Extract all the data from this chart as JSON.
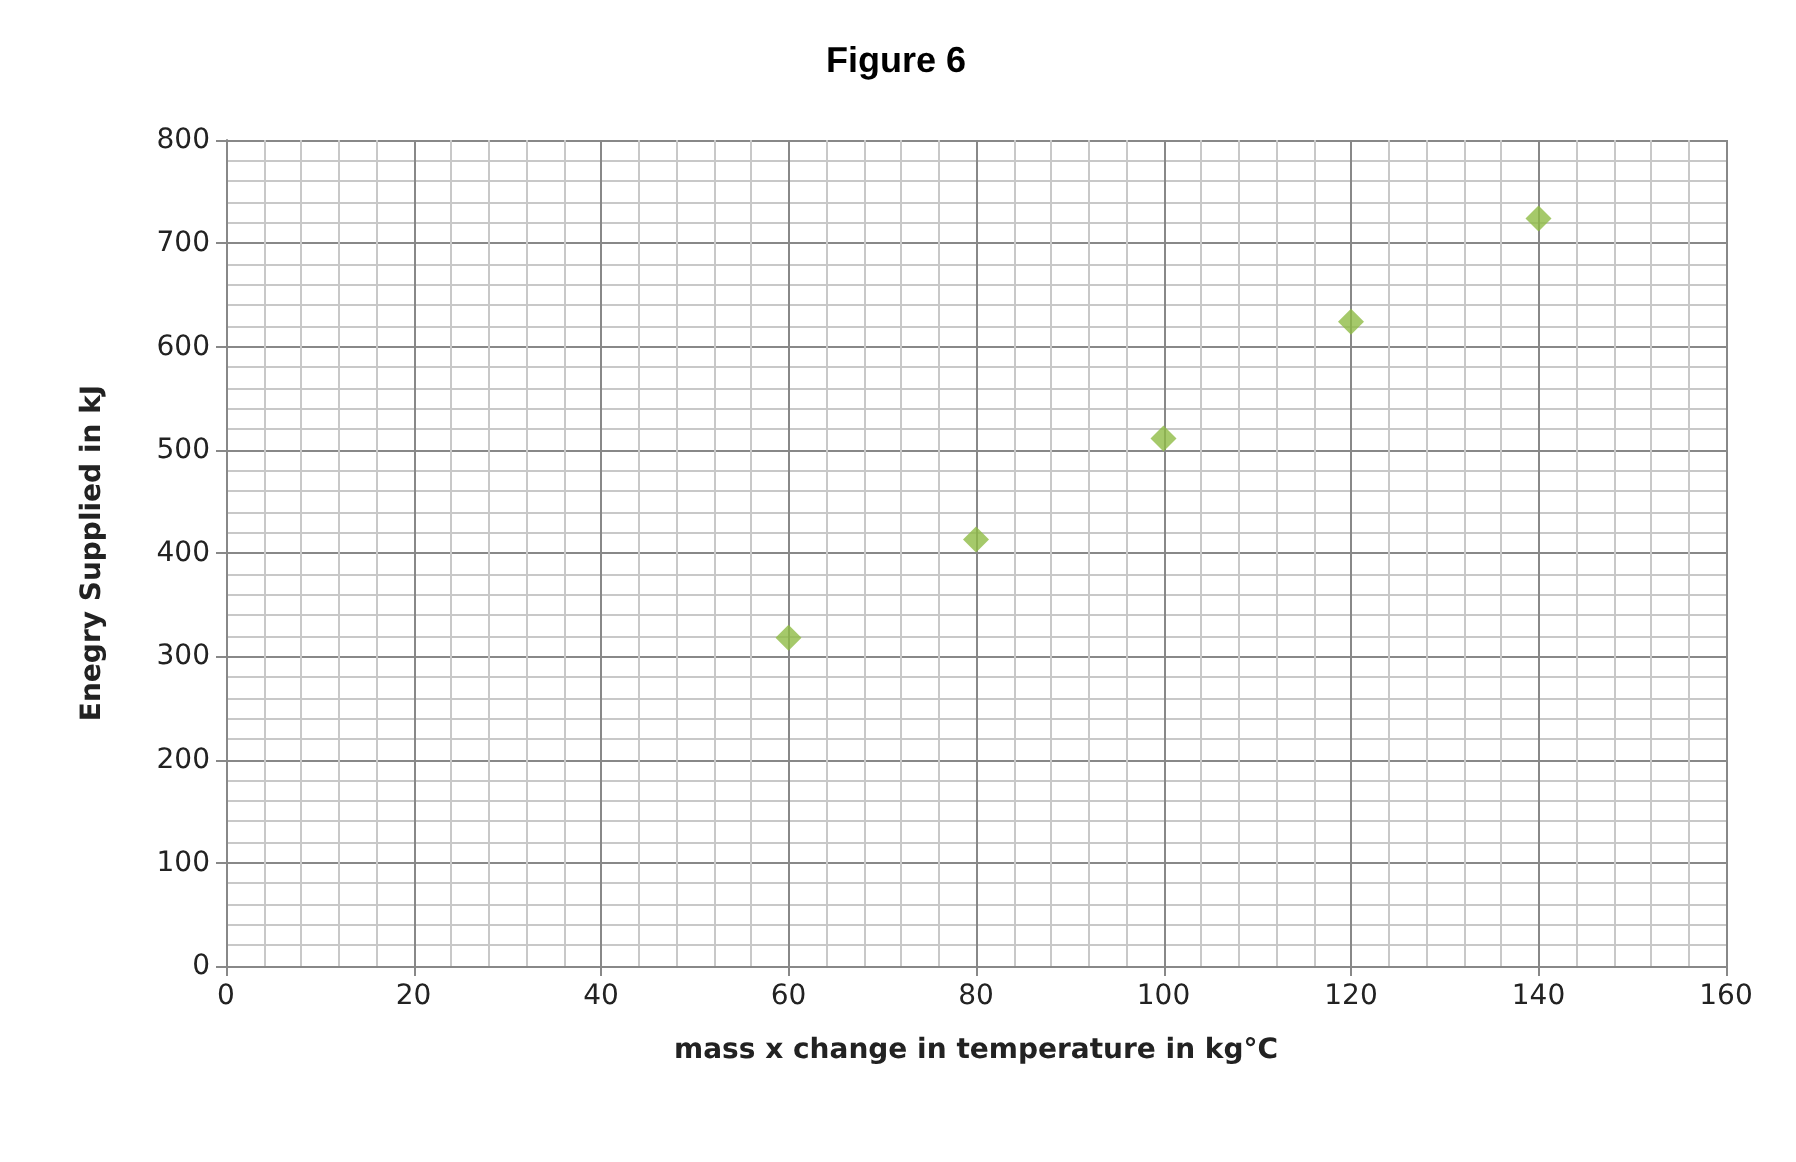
{
  "chart_data": {
    "type": "scatter",
    "title": "Figure 6",
    "xlabel": "mass x change in temperature in kg°C",
    "ylabel": "Enegry Supplied in kJ",
    "x": [
      60,
      80,
      100,
      120,
      140
    ],
    "series": [
      {
        "color": "#8fbc45",
        "values": [
          318,
          413,
          511,
          624,
          724
        ]
      }
    ],
    "xlim": [
      0,
      160
    ],
    "xticks": [
      0,
      20,
      40,
      60,
      80,
      100,
      120,
      140,
      160
    ],
    "ylim": [
      0,
      800
    ],
    "yticks": [
      0,
      100,
      200,
      300,
      400,
      500,
      600,
      700,
      800
    ],
    "grid": true,
    "marker": "diamond"
  }
}
